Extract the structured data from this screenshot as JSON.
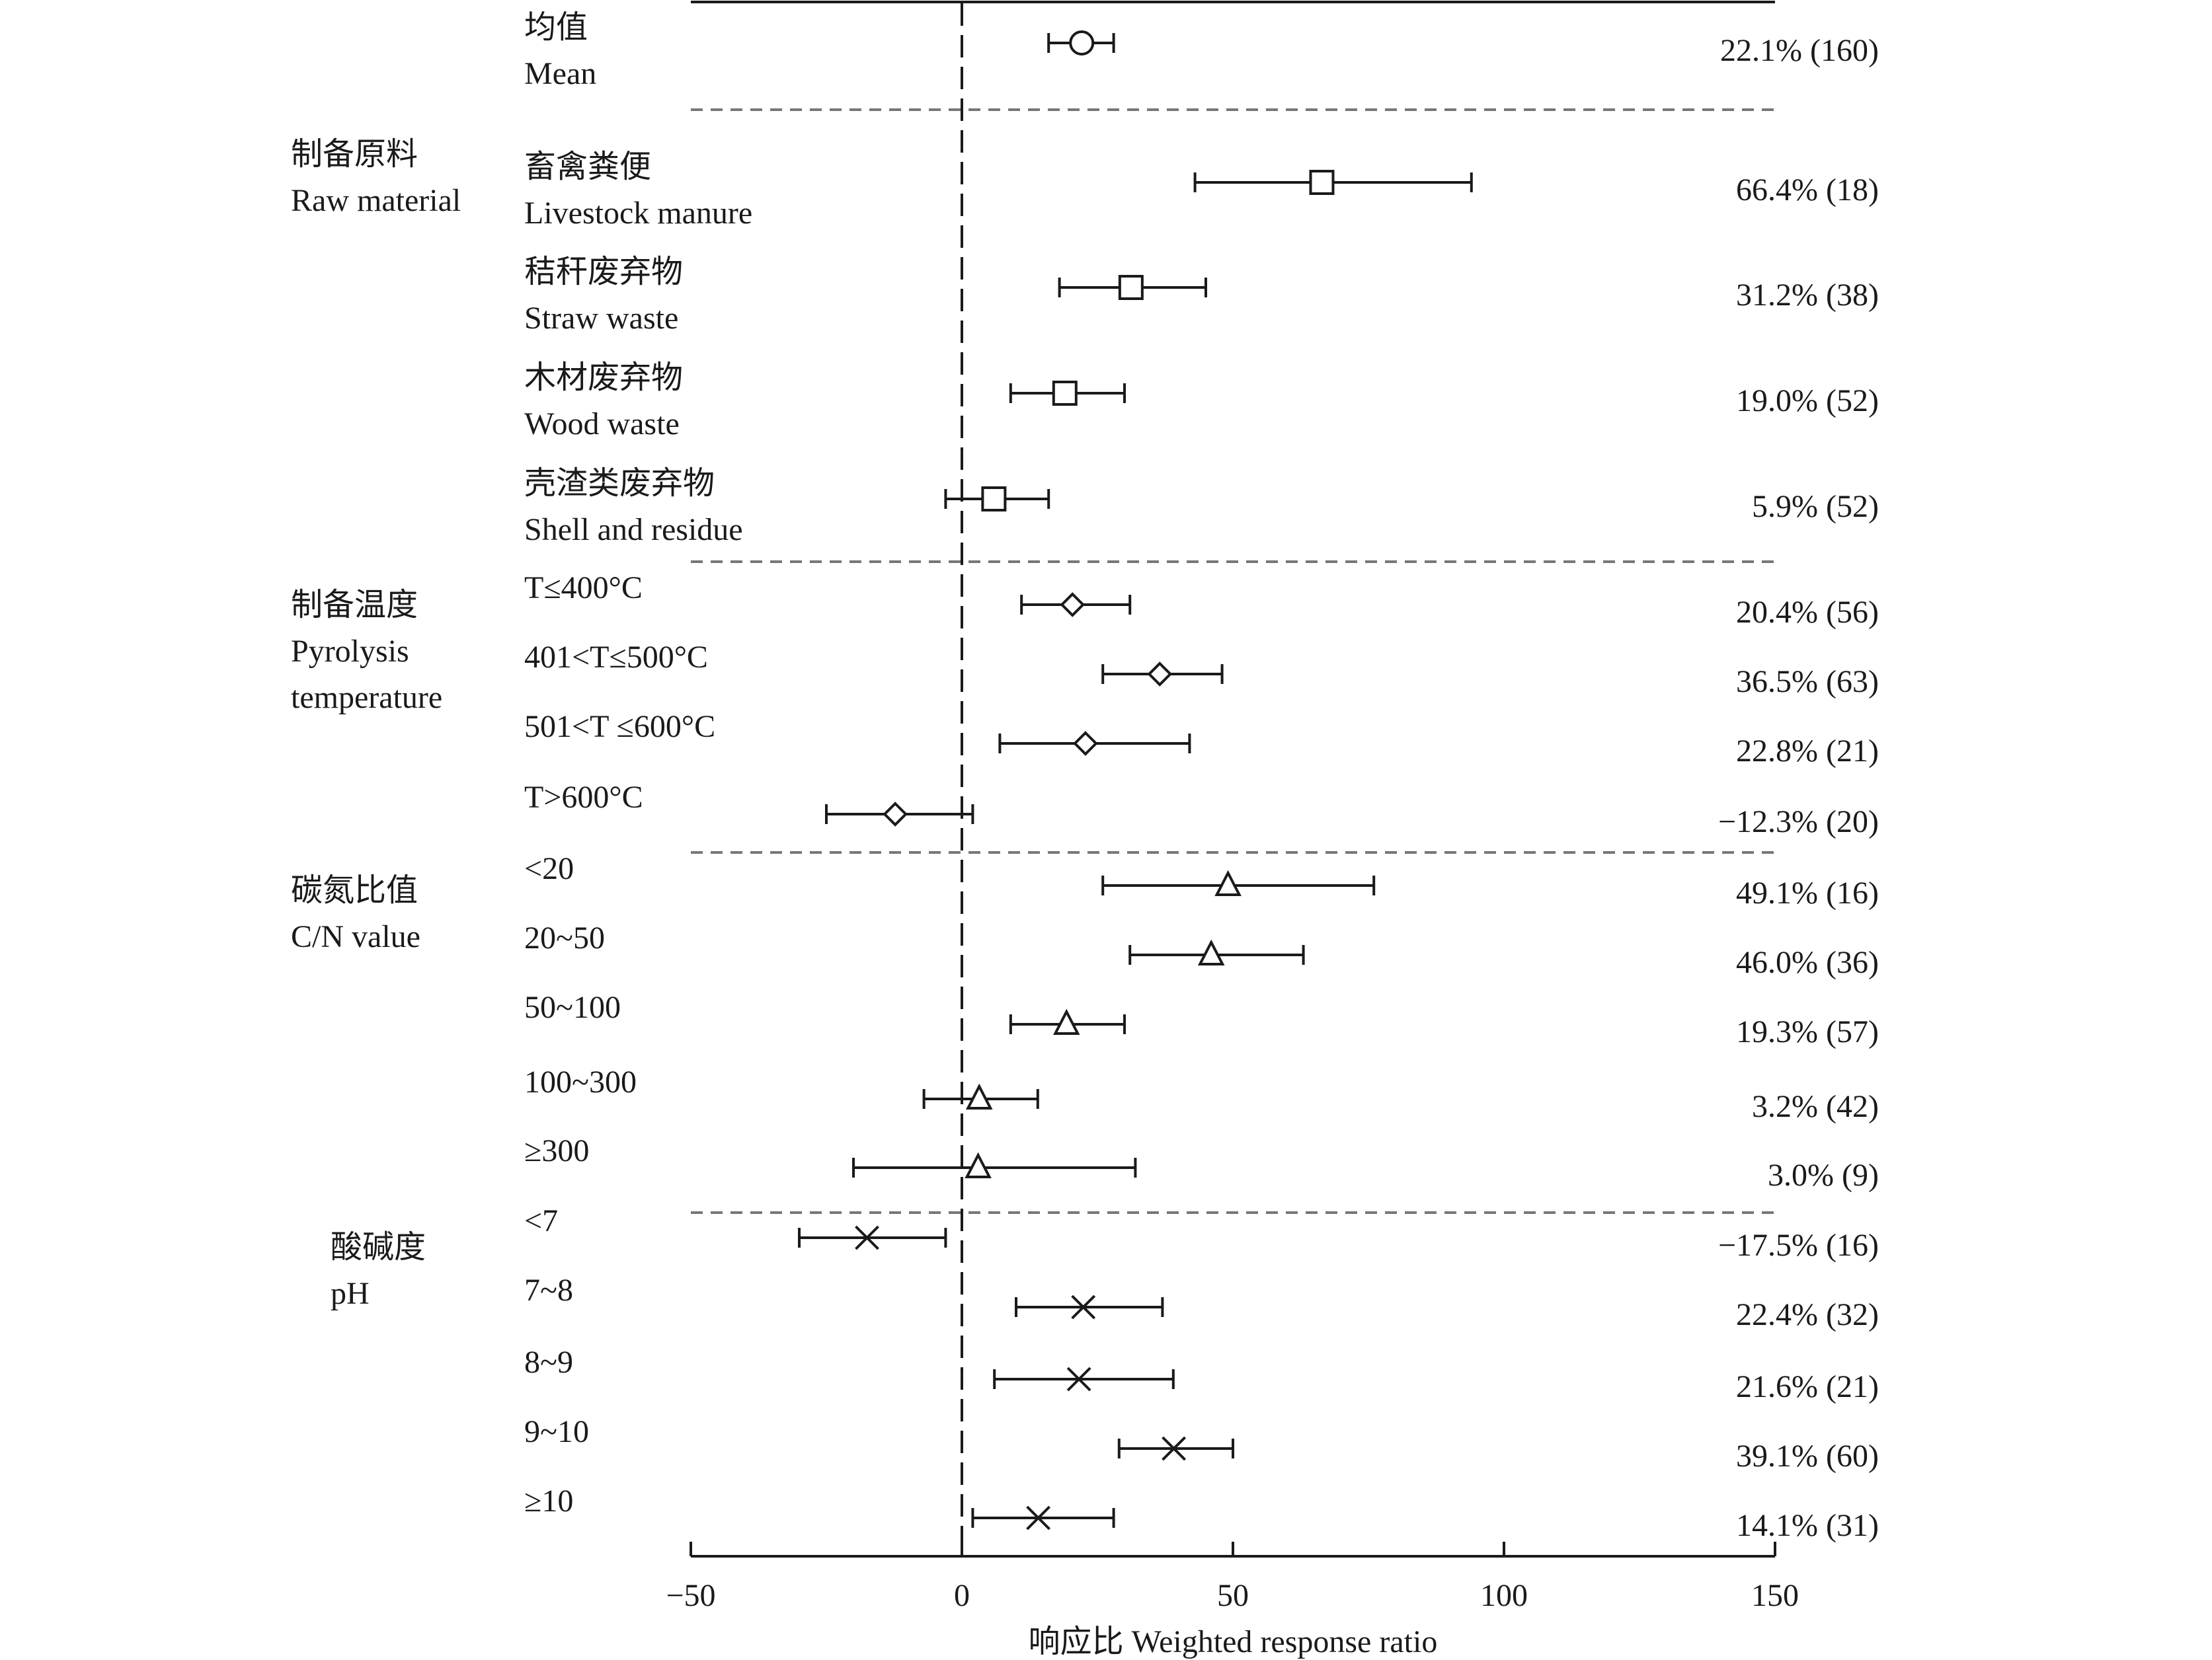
{
  "chart_data": {
    "type": "scatter",
    "subtype": "forest-plot",
    "xlabel": "响应比 Weighted response ratio",
    "xlim": [
      -50,
      150
    ],
    "xticks": [
      -50,
      0,
      50,
      100,
      150
    ],
    "reference_line": 0,
    "grid": false,
    "groups": [
      {
        "name_cn": "",
        "name_en": "",
        "marker": "circle",
        "rows": [
          {
            "label_cn": "均值",
            "label_en": "Mean",
            "value": 22.1,
            "ci": [
              16,
              28
            ],
            "annotation": "22.1% (160)"
          }
        ]
      },
      {
        "name_cn": "制备原料",
        "name_en": "Raw material",
        "marker": "square",
        "rows": [
          {
            "label_cn": "畜禽粪便",
            "label_en": "Livestock manure",
            "value": 66.4,
            "ci": [
              43,
              94
            ],
            "annotation": "66.4% (18)"
          },
          {
            "label_cn": "秸秆废弃物",
            "label_en": "Straw waste",
            "value": 31.2,
            "ci": [
              18,
              45
            ],
            "annotation": "31.2% (38)"
          },
          {
            "label_cn": "木材废弃物",
            "label_en": "Wood waste",
            "value": 19.0,
            "ci": [
              9,
              30
            ],
            "annotation": "19.0% (52)"
          },
          {
            "label_cn": "壳渣类废弃物",
            "label_en": "Shell and residue",
            "value": 5.9,
            "ci": [
              -3,
              16
            ],
            "annotation": "5.9% (52)"
          }
        ]
      },
      {
        "name_cn": "制备温度",
        "name_en": "Pyrolysis",
        "name_en2": "temperature",
        "marker": "diamond",
        "rows": [
          {
            "label_cn": "",
            "label_en": "T≤400°C",
            "value": 20.4,
            "ci": [
              11,
              31
            ],
            "annotation": "20.4% (56)"
          },
          {
            "label_cn": "",
            "label_en": "401<T≤500°C",
            "value": 36.5,
            "ci": [
              26,
              48
            ],
            "annotation": "36.5% (63)"
          },
          {
            "label_cn": "",
            "label_en": "501<T ≤600°C",
            "value": 22.8,
            "ci": [
              7,
              42
            ],
            "annotation": "22.8% (21)"
          },
          {
            "label_cn": "",
            "label_en": "T>600°C",
            "value": -12.3,
            "ci": [
              -25,
              2
            ],
            "annotation": "−12.3% (20)"
          }
        ]
      },
      {
        "name_cn": "碳氮比值",
        "name_en": "C/N value",
        "marker": "triangle",
        "rows": [
          {
            "label_cn": "",
            "label_en": "<20",
            "value": 49.1,
            "ci": [
              26,
              76
            ],
            "annotation": "49.1% (16)"
          },
          {
            "label_cn": "",
            "label_en": "20~50",
            "value": 46.0,
            "ci": [
              31,
              63
            ],
            "annotation": "46.0% (36)"
          },
          {
            "label_cn": "",
            "label_en": "50~100",
            "value": 19.3,
            "ci": [
              9,
              30
            ],
            "annotation": "19.3% (57)"
          },
          {
            "label_cn": "",
            "label_en": "100~300",
            "value": 3.2,
            "ci": [
              -7,
              14
            ],
            "annotation": "3.2% (42)"
          },
          {
            "label_cn": "",
            "label_en": "≥300",
            "value": 3.0,
            "ci": [
              -20,
              32
            ],
            "annotation": "3.0% (9)"
          }
        ]
      },
      {
        "name_cn": "酸碱度",
        "name_en": "pH",
        "marker": "x",
        "rows": [
          {
            "label_cn": "",
            "label_en": "<7",
            "value": -17.5,
            "ci": [
              -30,
              -3
            ],
            "annotation": "−17.5% (16)"
          },
          {
            "label_cn": "",
            "label_en": "7~8",
            "value": 22.4,
            "ci": [
              10,
              37
            ],
            "annotation": "22.4% (32)"
          },
          {
            "label_cn": "",
            "label_en": "8~9",
            "value": 21.6,
            "ci": [
              6,
              39
            ],
            "annotation": "21.6% (21)"
          },
          {
            "label_cn": "",
            "label_en": "9~10",
            "value": 39.1,
            "ci": [
              29,
              50
            ],
            "annotation": "39.1% (60)"
          },
          {
            "label_cn": "",
            "label_en": "≥10",
            "value": 14.1,
            "ci": [
              2,
              28
            ],
            "annotation": "14.1% (31)"
          }
        ]
      }
    ]
  }
}
